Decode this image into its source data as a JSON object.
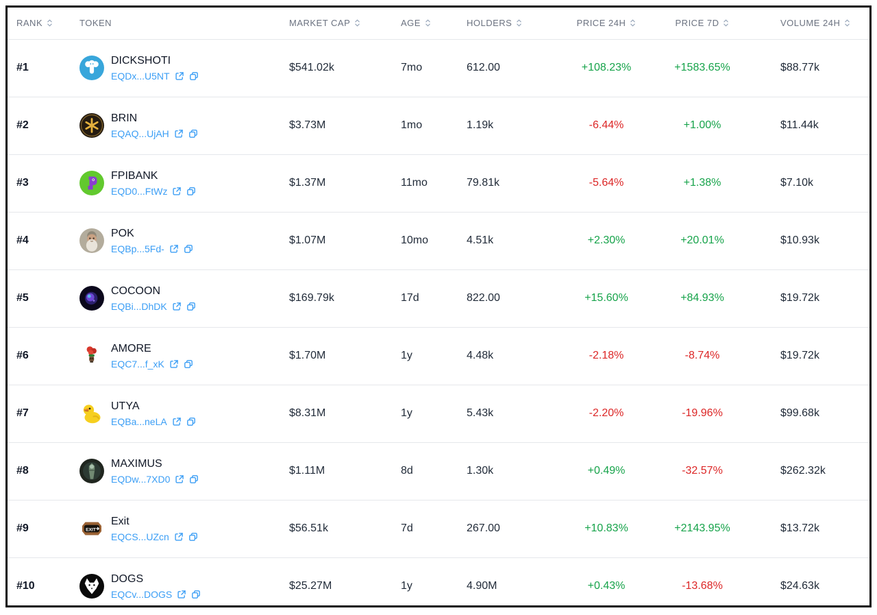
{
  "table": {
    "columns": [
      {
        "key": "rank",
        "label": "RANK",
        "sortable": true,
        "align": "left"
      },
      {
        "key": "token",
        "label": "TOKEN",
        "sortable": false,
        "align": "left"
      },
      {
        "key": "market_cap",
        "label": "MARKET CAP",
        "sortable": true,
        "align": "left"
      },
      {
        "key": "age",
        "label": "AGE",
        "sortable": true,
        "align": "left"
      },
      {
        "key": "holders",
        "label": "HOLDERS",
        "sortable": true,
        "align": "left"
      },
      {
        "key": "price_24h",
        "label": "PRICE 24H",
        "sortable": true,
        "align": "center"
      },
      {
        "key": "price_7d",
        "label": "PRICE 7D",
        "sortable": true,
        "align": "center"
      },
      {
        "key": "volume_24h",
        "label": "VOLUME 24H",
        "sortable": true,
        "align": "left"
      }
    ],
    "rows": [
      {
        "rank": "#1",
        "name": "DICKSHOTI",
        "address": "EQDx...U5NT",
        "icon": "dickshoti-token-icon",
        "market_cap": "$541.02k",
        "age": "7mo",
        "holders": "612.00",
        "price_24h": "+108.23%",
        "price_7d": "+1583.65%",
        "volume_24h": "$88.77k"
      },
      {
        "rank": "#2",
        "name": "BRIN",
        "address": "EQAQ...UjAH",
        "icon": "brin-token-icon",
        "market_cap": "$3.73M",
        "age": "1mo",
        "holders": "1.19k",
        "price_24h": "-6.44%",
        "price_7d": "+1.00%",
        "volume_24h": "$11.44k"
      },
      {
        "rank": "#3",
        "name": "FPIBANK",
        "address": "EQD0...FtWz",
        "icon": "fpibank-token-icon",
        "market_cap": "$1.37M",
        "age": "11mo",
        "holders": "79.81k",
        "price_24h": "-5.64%",
        "price_7d": "+1.38%",
        "volume_24h": "$7.10k"
      },
      {
        "rank": "#4",
        "name": "POK",
        "address": "EQBp...5Fd-",
        "icon": "pok-token-icon",
        "market_cap": "$1.07M",
        "age": "10mo",
        "holders": "4.51k",
        "price_24h": "+2.30%",
        "price_7d": "+20.01%",
        "volume_24h": "$10.93k"
      },
      {
        "rank": "#5",
        "name": "COCOON",
        "address": "EQBi...DhDK",
        "icon": "cocoon-token-icon",
        "market_cap": "$169.79k",
        "age": "17d",
        "holders": "822.00",
        "price_24h": "+15.60%",
        "price_7d": "+84.93%",
        "volume_24h": "$19.72k"
      },
      {
        "rank": "#6",
        "name": "AMORE",
        "address": "EQC7...f_xK",
        "icon": "amore-token-icon",
        "market_cap": "$1.70M",
        "age": "1y",
        "holders": "4.48k",
        "price_24h": "-2.18%",
        "price_7d": "-8.74%",
        "volume_24h": "$19.72k"
      },
      {
        "rank": "#7",
        "name": "UTYA",
        "address": "EQBa...neLA",
        "icon": "utya-token-icon",
        "market_cap": "$8.31M",
        "age": "1y",
        "holders": "5.43k",
        "price_24h": "-2.20%",
        "price_7d": "-19.96%",
        "volume_24h": "$99.68k"
      },
      {
        "rank": "#8",
        "name": "MAXIMUS",
        "address": "EQDw...7XD0",
        "icon": "maximus-token-icon",
        "market_cap": "$1.11M",
        "age": "8d",
        "holders": "1.30k",
        "price_24h": "+0.49%",
        "price_7d": "-32.57%",
        "volume_24h": "$262.32k"
      },
      {
        "rank": "#9",
        "name": "Exit",
        "address": "EQCS...UZcn",
        "icon": "exit-token-icon",
        "market_cap": "$56.51k",
        "age": "7d",
        "holders": "267.00",
        "price_24h": "+10.83%",
        "price_7d": "+2143.95%",
        "volume_24h": "$13.72k"
      },
      {
        "rank": "#10",
        "name": "DOGS",
        "address": "EQCv...DOGS",
        "icon": "dogs-token-icon",
        "market_cap": "$25.27M",
        "age": "1y",
        "holders": "4.90M",
        "price_24h": "+0.43%",
        "price_7d": "-13.68%",
        "volume_24h": "$24.63k"
      }
    ]
  },
  "icons": {
    "sort": "sort-icon",
    "external_link": "external-link-icon",
    "copy": "copy-icon"
  },
  "colors": {
    "positive": "#16a34a",
    "negative": "#dc2626",
    "link": "#3b9ef5",
    "header_text": "#6b7280",
    "cell_text": "#1f2937",
    "divider": "#e5e7eb",
    "frame_border": "#0a0a0a",
    "background": "#ffffff"
  }
}
